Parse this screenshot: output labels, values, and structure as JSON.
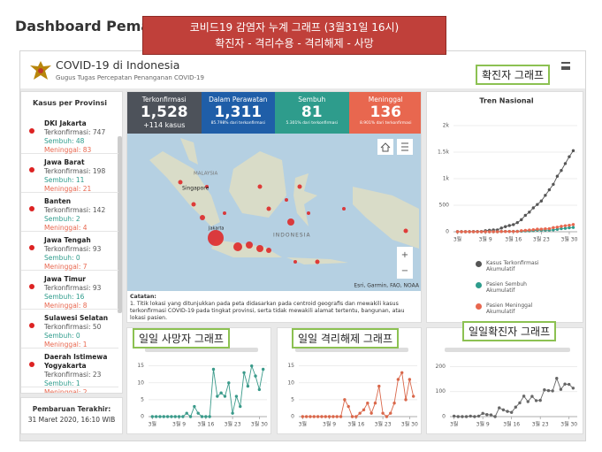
{
  "header": {
    "title": "Dashboard Pemant"
  },
  "annotations": {
    "top": [
      "코비드19 감염자 누계 그래프  (3월31일 16시)",
      "확진자 -  격리수용  - 격리해제 - 사망"
    ],
    "cumulative": "확진자 그래프",
    "daily_deaths": "일일 사망자 그래프",
    "daily_recovered": "일일 격리해제 그래프",
    "daily_confirmed": "일일확진자 그래프"
  },
  "app": {
    "title": "COVID-19 di Indonesia",
    "subtitle": "Gugus Tugas Percepatan Penanganan COVID-19"
  },
  "provinces": {
    "title": "Kasus per Provinsi",
    "items": [
      {
        "name": "DKI Jakarta",
        "confirmed": "Terkonfirmasi: 747",
        "recovered": "Sembuh: 48",
        "deaths": "Meninggal: 83"
      },
      {
        "name": "Jawa Barat",
        "confirmed": "Terkonfirmasi: 198",
        "recovered": "Sembuh: 11",
        "deaths": "Meninggal: 21"
      },
      {
        "name": "Banten",
        "confirmed": "Terkonfirmasi: 142",
        "recovered": "Sembuh: 2",
        "deaths": "Meninggal: 4"
      },
      {
        "name": "Jawa Tengah",
        "confirmed": "Terkonfirmasi: 93",
        "recovered": "Sembuh: 0",
        "deaths": "Meninggal: 7"
      },
      {
        "name": "Jawa Timur",
        "confirmed": "Terkonfirmasi: 93",
        "recovered": "Sembuh: 16",
        "deaths": "Meninggal: 8"
      },
      {
        "name": "Sulawesi Selatan",
        "confirmed": "Terkonfirmasi: 50",
        "recovered": "Sembuh: 0",
        "deaths": "Meninggal: 1"
      },
      {
        "name": "Daerah Istimewa Yogyakarta",
        "confirmed": "Terkonfirmasi: 23",
        "recovered": "Sembuh: 1",
        "deaths": "Meninggal: 2"
      }
    ]
  },
  "update": {
    "label": "Pembaruan Terakhir:",
    "time": "31 Maret 2020, 16:10 WIB"
  },
  "stats": [
    {
      "label": "Terkonfirmasi",
      "value": "1,528",
      "note": "+114 kasus",
      "color": "#4d525a"
    },
    {
      "label": "Dalam Perawatan",
      "value": "1,311",
      "note": "85.798% dari terkonfirmasi",
      "color": "#1f5ea8"
    },
    {
      "label": "Sembuh",
      "value": "81",
      "note": "5.301% dari terkonfirmasi",
      "color": "#2e9c8c"
    },
    {
      "label": "Meninggal",
      "value": "136",
      "note": "8.901% dari terkonfirmasi",
      "color": "#e8674f"
    }
  ],
  "map": {
    "labels": [
      "MALAYSIA",
      "Singapore",
      "INDONESIA",
      "Jakarta"
    ],
    "attribution": "Esri, Garmin, FAO, NOAA"
  },
  "notes": {
    "title": "Catatan:",
    "text": "1. Titik lokasi yang ditunjukkan pada peta didasarkan pada centroid geografis dan mewakili kasus terkonfirmasi COVID-19 pada tingkat provinsi, serta tidak mewakili alamat tertentu, bangunan, atau lokasi pasien."
  },
  "chart_data": [
    {
      "type": "line",
      "title": "Tren Nasional",
      "x": [
        2,
        3,
        4,
        5,
        6,
        7,
        8,
        9,
        10,
        11,
        12,
        13,
        14,
        15,
        16,
        17,
        18,
        19,
        20,
        21,
        22,
        23,
        24,
        25,
        26,
        27,
        28,
        29,
        30,
        31
      ],
      "xlim": [
        1,
        32
      ],
      "xticks": [
        {
          "value": 2,
          "label": "3월"
        },
        {
          "value": 9,
          "label": "3월 9"
        },
        {
          "value": 16,
          "label": "3월 16"
        },
        {
          "value": 23,
          "label": "3월 23"
        },
        {
          "value": 30,
          "label": "3월 30"
        }
      ],
      "ylim": [
        0,
        2000
      ],
      "yticks": [
        0,
        500,
        {
          "value": 1000,
          "label": "1k"
        },
        {
          "value": 1500,
          "label": "1.5k"
        },
        {
          "value": 2000,
          "label": "2k"
        }
      ],
      "grid": true,
      "legend": "bottom",
      "series": [
        {
          "name": "Kasus Terkonfirmasi Akumulatif",
          "color": "#555555",
          "values": [
            2,
            2,
            2,
            2,
            4,
            4,
            6,
            19,
            27,
            34,
            34,
            69,
            96,
            117,
            134,
            172,
            227,
            309,
            369,
            450,
            514,
            579,
            686,
            790,
            893,
            1046,
            1155,
            1285,
            1414,
            1528
          ]
        },
        {
          "name": "Pasien Sembuh Akumulatif",
          "color": "#2e9c8c",
          "values": [
            0,
            0,
            0,
            0,
            0,
            0,
            0,
            0,
            0,
            0,
            0,
            5,
            8,
            8,
            8,
            9,
            11,
            15,
            16,
            20,
            29,
            30,
            30,
            31,
            35,
            46,
            59,
            64,
            75,
            81
          ]
        },
        {
          "name": "Pasien Meninggal Akumulatif",
          "color": "#e8674f",
          "values": [
            0,
            0,
            0,
            0,
            0,
            0,
            0,
            0,
            0,
            1,
            1,
            4,
            5,
            5,
            5,
            5,
            19,
            25,
            32,
            38,
            48,
            49,
            55,
            58,
            78,
            87,
            102,
            114,
            122,
            136
          ]
        }
      ]
    },
    {
      "type": "line",
      "x": [
        2,
        3,
        4,
        5,
        6,
        7,
        8,
        9,
        10,
        11,
        12,
        13,
        14,
        15,
        16,
        17,
        18,
        19,
        20,
        21,
        22,
        23,
        24,
        25,
        26,
        27,
        28,
        29,
        30,
        31
      ],
      "xlim": [
        1,
        32
      ],
      "xticks": [
        {
          "value": 2,
          "label": "3월"
        },
        {
          "value": 9,
          "label": "3월 9"
        },
        {
          "value": 16,
          "label": "3월 16"
        },
        {
          "value": 23,
          "label": "3월 23"
        },
        {
          "value": 30,
          "label": "3월 30"
        }
      ],
      "ylim": [
        0,
        17
      ],
      "yticks": [
        0,
        5,
        10,
        15
      ],
      "grid": true,
      "series": [
        {
          "color": "#3a9a8a",
          "values": [
            0,
            0,
            0,
            0,
            0,
            0,
            0,
            0,
            0,
            1,
            0,
            3,
            1,
            0,
            0,
            0,
            14,
            6,
            7,
            6,
            10,
            1,
            6,
            3,
            13,
            9,
            15,
            12,
            8,
            14
          ]
        }
      ]
    },
    {
      "type": "line",
      "x": [
        2,
        3,
        4,
        5,
        6,
        7,
        8,
        9,
        10,
        11,
        12,
        13,
        14,
        15,
        16,
        17,
        18,
        19,
        20,
        21,
        22,
        23,
        24,
        25,
        26,
        27,
        28,
        29,
        30,
        31
      ],
      "xlim": [
        1,
        32
      ],
      "xticks": [
        {
          "value": 2,
          "label": "3월"
        },
        {
          "value": 9,
          "label": "3월 9"
        },
        {
          "value": 16,
          "label": "3월 16"
        },
        {
          "value": 23,
          "label": "3월 23"
        },
        {
          "value": 30,
          "label": "3월 30"
        }
      ],
      "ylim": [
        0,
        17
      ],
      "yticks": [
        0,
        5,
        10,
        15
      ],
      "grid": true,
      "series": [
        {
          "color": "#d9674a",
          "values": [
            0,
            0,
            0,
            0,
            0,
            0,
            0,
            0,
            0,
            0,
            0,
            5,
            3,
            0,
            0,
            1,
            2,
            4,
            1,
            4,
            9,
            1,
            0,
            1,
            4,
            11,
            13,
            5,
            11,
            6
          ]
        }
      ]
    },
    {
      "type": "line",
      "x": [
        2,
        3,
        4,
        5,
        6,
        7,
        8,
        9,
        10,
        11,
        12,
        13,
        14,
        15,
        16,
        17,
        18,
        19,
        20,
        21,
        22,
        23,
        24,
        25,
        26,
        27,
        28,
        29,
        30,
        31
      ],
      "xlim": [
        1,
        32
      ],
      "xticks": [
        {
          "value": 2,
          "label": "3월"
        },
        {
          "value": 9,
          "label": "3월 9"
        },
        {
          "value": 16,
          "label": "3월 16"
        },
        {
          "value": 23,
          "label": "3월 23"
        },
        {
          "value": 30,
          "label": "3월 30"
        }
      ],
      "ylim": [
        0,
        230
      ],
      "yticks": [
        0,
        100,
        200
      ],
      "grid": true,
      "series": [
        {
          "color": "#666666",
          "values": [
            2,
            0,
            0,
            0,
            2,
            0,
            2,
            13,
            8,
            7,
            0,
            35,
            27,
            21,
            17,
            38,
            55,
            82,
            60,
            81,
            64,
            65,
            107,
            104,
            103,
            153,
            109,
            130,
            129,
            114
          ]
        }
      ]
    }
  ]
}
